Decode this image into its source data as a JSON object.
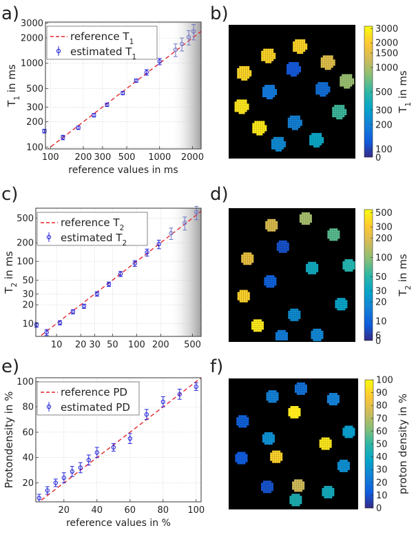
{
  "panels": {
    "a": "a)",
    "b": "b)",
    "c": "c)",
    "d": "d)",
    "e": "e)",
    "f": "f)"
  },
  "chart_data": [
    {
      "id": "t1",
      "type": "scatter",
      "scale": "log",
      "title": "",
      "xlabel": "reference values in ms",
      "ylabel_main": "T",
      "ylabel_sub": "1",
      "ylabel_tail": " in ms",
      "xlim": [
        90,
        2400
      ],
      "ylim": [
        95,
        3100
      ],
      "shade_from": 1250,
      "xticks": [
        100,
        200,
        300,
        500,
        1000,
        2000
      ],
      "xtick_labels": [
        "100",
        "200",
        "300",
        "500",
        "1000",
        "2000"
      ],
      "yticks": [
        100,
        200,
        300,
        500,
        1000,
        2000,
        3000
      ],
      "ytick_labels": [
        "100",
        "200",
        "300",
        "500",
        "1000",
        "2000",
        "3000"
      ],
      "legend": {
        "reference_prefix": "reference T",
        "reference_sub": "1",
        "estimated_prefix": "estimated T",
        "estimated_sub": "1"
      },
      "reference_line": [
        [
          90,
          90
        ],
        [
          2400,
          2400
        ]
      ],
      "points": [
        {
          "x": 88,
          "y": 155,
          "err": 8
        },
        {
          "x": 130,
          "y": 130,
          "err": 8
        },
        {
          "x": 180,
          "y": 170,
          "err": 8
        },
        {
          "x": 250,
          "y": 240,
          "err": 12
        },
        {
          "x": 330,
          "y": 320,
          "err": 15
        },
        {
          "x": 460,
          "y": 440,
          "err": 20
        },
        {
          "x": 610,
          "y": 620,
          "err": 30
        },
        {
          "x": 760,
          "y": 780,
          "err": 60
        },
        {
          "x": 1000,
          "y": 1050,
          "err": 90
        },
        {
          "x": 1400,
          "y": 1450,
          "err": 250
        },
        {
          "x": 1600,
          "y": 1700,
          "err": 300
        },
        {
          "x": 1850,
          "y": 2050,
          "err": 400
        },
        {
          "x": 2050,
          "y": 2400,
          "err": 500
        }
      ]
    },
    {
      "id": "t2",
      "type": "scatter",
      "scale": "log",
      "title": "",
      "xlabel": "",
      "ylabel_main": "T",
      "ylabel_sub": "2",
      "ylabel_tail": " in ms",
      "xlim": [
        5.5,
        640
      ],
      "ylim": [
        6.2,
        720
      ],
      "shade_from": 250,
      "xticks": [
        10,
        20,
        30,
        50,
        100,
        200,
        500
      ],
      "xtick_labels": [
        "10",
        "20",
        "30",
        "50",
        "100",
        "200",
        "500"
      ],
      "yticks": [
        10,
        20,
        30,
        50,
        100,
        200,
        500
      ],
      "ytick_labels": [
        "10",
        "20",
        "30",
        "50",
        "100",
        "200",
        "500"
      ],
      "legend": {
        "reference_prefix": "reference T",
        "reference_sub": "2",
        "estimated_prefix": "estimated T",
        "estimated_sub": "2"
      },
      "reference_line": [
        [
          5.5,
          5.5
        ],
        [
          640,
          640
        ]
      ],
      "points": [
        {
          "x": 5.6,
          "y": 9.5,
          "err": 0.8
        },
        {
          "x": 7.5,
          "y": 7.2,
          "err": 0.8
        },
        {
          "x": 11,
          "y": 10.3,
          "err": 0.8
        },
        {
          "x": 16,
          "y": 15.5,
          "err": 1.2
        },
        {
          "x": 22,
          "y": 19,
          "err": 1.5
        },
        {
          "x": 32,
          "y": 30,
          "err": 2.5
        },
        {
          "x": 45,
          "y": 43,
          "err": 3.5
        },
        {
          "x": 63,
          "y": 63,
          "err": 6
        },
        {
          "x": 95,
          "y": 93,
          "err": 10
        },
        {
          "x": 135,
          "y": 140,
          "err": 18
        },
        {
          "x": 190,
          "y": 190,
          "err": 30
        },
        {
          "x": 270,
          "y": 285,
          "err": 60
        },
        {
          "x": 400,
          "y": 420,
          "err": 100
        },
        {
          "x": 560,
          "y": 620,
          "err": 150
        }
      ]
    },
    {
      "id": "pd",
      "type": "scatter",
      "scale": "linear",
      "title": "",
      "xlabel": "reference values in %",
      "ylabel_main": "Protondensity in %",
      "ylabel_sub": "",
      "ylabel_tail": "",
      "xlim": [
        3,
        103
      ],
      "ylim": [
        5,
        103
      ],
      "shade_from": null,
      "xticks": [
        20,
        40,
        60,
        80,
        100
      ],
      "xtick_labels": [
        "20",
        "40",
        "60",
        "80",
        "100"
      ],
      "yticks": [
        20,
        40,
        60,
        80,
        100
      ],
      "ytick_labels": [
        "20",
        "40",
        "60",
        "80",
        "100"
      ],
      "legend": {
        "reference_prefix": "reference PD",
        "reference_sub": "",
        "estimated_prefix": "estimated PD",
        "estimated_sub": ""
      },
      "reference_line": [
        [
          3,
          3
        ],
        [
          103,
          103
        ]
      ],
      "points": [
        {
          "x": 5,
          "y": 8,
          "err": 3
        },
        {
          "x": 10,
          "y": 14,
          "err": 3
        },
        {
          "x": 15,
          "y": 20,
          "err": 3
        },
        {
          "x": 20,
          "y": 24,
          "err": 4
        },
        {
          "x": 25,
          "y": 29,
          "err": 4
        },
        {
          "x": 30,
          "y": 32,
          "err": 4
        },
        {
          "x": 35,
          "y": 38,
          "err": 4
        },
        {
          "x": 40,
          "y": 44,
          "err": 4
        },
        {
          "x": 50,
          "y": 48,
          "err": 3
        },
        {
          "x": 60,
          "y": 55,
          "err": 4
        },
        {
          "x": 70,
          "y": 74,
          "err": 4
        },
        {
          "x": 80,
          "y": 84,
          "err": 4
        },
        {
          "x": 90,
          "y": 90,
          "err": 4
        },
        {
          "x": 100,
          "y": 96,
          "err": 3
        }
      ]
    },
    {
      "id": "map-t1",
      "type": "heatmap",
      "colorbar_label_main": "T",
      "colorbar_label_sub": "1",
      "colorbar_label_tail": " in ms",
      "colorbar_scale": "log",
      "colorbar_range": [
        80,
        3200
      ],
      "colorbar_ticks": [
        3000,
        2000,
        1500,
        1000,
        500,
        300,
        200,
        100
      ],
      "colorbar_tick_labels": [
        "3000",
        "2000",
        "1500",
        "1000",
        "500",
        "300",
        "200",
        "100"
      ],
      "colorbar_zero_label": "0",
      "spots": [
        {
          "col": 0.55,
          "row": 0.15,
          "value": 2300
        },
        {
          "col": 0.3,
          "row": 0.22,
          "value": 2300
        },
        {
          "col": 0.77,
          "row": 0.27,
          "value": 1500
        },
        {
          "col": 0.11,
          "row": 0.35,
          "value": 2300
        },
        {
          "col": 0.5,
          "row": 0.32,
          "value": 120
        },
        {
          "col": 0.92,
          "row": 0.41,
          "value": 900
        },
        {
          "col": 0.31,
          "row": 0.49,
          "value": 180
        },
        {
          "col": 0.73,
          "row": 0.47,
          "value": 160
        },
        {
          "col": 0.09,
          "row": 0.6,
          "value": 2600
        },
        {
          "col": 0.86,
          "row": 0.64,
          "value": 550
        },
        {
          "col": 0.51,
          "row": 0.72,
          "value": 200
        },
        {
          "col": 0.23,
          "row": 0.76,
          "value": 2700
        },
        {
          "col": 0.38,
          "row": 0.88,
          "value": 230
        },
        {
          "col": 0.68,
          "row": 0.85,
          "value": 340
        }
      ]
    },
    {
      "id": "map-t2",
      "type": "heatmap",
      "colorbar_label_main": "T",
      "colorbar_label_sub": "2",
      "colorbar_label_tail": " in ms",
      "colorbar_scale": "log",
      "colorbar_range": [
        5,
        560
      ],
      "colorbar_ticks": [
        500,
        300,
        200,
        100,
        50,
        30,
        20,
        10,
        6
      ],
      "colorbar_tick_labels": [
        "500",
        "300",
        "200",
        "100",
        "50",
        "30",
        "20",
        "10",
        "6"
      ],
      "colorbar_zero_label": "0",
      "spots": [
        {
          "col": 0.33,
          "row": 0.12,
          "value": 200
        },
        {
          "col": 0.6,
          "row": 0.07,
          "value": 120
        },
        {
          "col": 0.82,
          "row": 0.19,
          "value": 70
        },
        {
          "col": 0.42,
          "row": 0.28,
          "value": 8
        },
        {
          "col": 0.14,
          "row": 0.37,
          "value": 250
        },
        {
          "col": 0.94,
          "row": 0.42,
          "value": 45
        },
        {
          "col": 0.65,
          "row": 0.44,
          "value": 35
        },
        {
          "col": 0.32,
          "row": 0.54,
          "value": 10
        },
        {
          "col": 0.11,
          "row": 0.65,
          "value": 350
        },
        {
          "col": 0.88,
          "row": 0.71,
          "value": 30
        },
        {
          "col": 0.51,
          "row": 0.79,
          "value": 20
        },
        {
          "col": 0.22,
          "row": 0.87,
          "value": 450
        },
        {
          "col": 0.41,
          "row": 0.95,
          "value": 15
        },
        {
          "col": 0.69,
          "row": 0.94,
          "value": 18
        }
      ]
    },
    {
      "id": "map-pd",
      "type": "heatmap",
      "colorbar_label_main": "proton density in %",
      "colorbar_label_sub": "",
      "colorbar_label_tail": "",
      "colorbar_scale": "linear",
      "colorbar_range": [
        0,
        100
      ],
      "colorbar_ticks": [
        100,
        90,
        80,
        70,
        60,
        50,
        40,
        30,
        20,
        10,
        0
      ],
      "colorbar_tick_labels": [
        "100",
        "90",
        "80",
        "70",
        "60",
        "50",
        "40",
        "30",
        "20",
        "10",
        "0"
      ],
      "colorbar_zero_label": "",
      "spots": [
        {
          "col": 0.33,
          "row": 0.13,
          "value": 25
        },
        {
          "col": 0.55,
          "row": 0.07,
          "value": 20
        },
        {
          "col": 0.8,
          "row": 0.15,
          "value": 25
        },
        {
          "col": 0.1,
          "row": 0.32,
          "value": 15
        },
        {
          "col": 0.5,
          "row": 0.25,
          "value": 95
        },
        {
          "col": 0.92,
          "row": 0.4,
          "value": 35
        },
        {
          "col": 0.74,
          "row": 0.49,
          "value": 95
        },
        {
          "col": 0.3,
          "row": 0.45,
          "value": 30
        },
        {
          "col": 0.09,
          "row": 0.6,
          "value": 12
        },
        {
          "col": 0.36,
          "row": 0.59,
          "value": 90
        },
        {
          "col": 0.88,
          "row": 0.66,
          "value": 30
        },
        {
          "col": 0.53,
          "row": 0.81,
          "value": 75
        },
        {
          "col": 0.29,
          "row": 0.82,
          "value": 10
        },
        {
          "col": 0.51,
          "row": 0.92,
          "value": 45
        },
        {
          "col": 0.76,
          "row": 0.86,
          "value": 42
        }
      ]
    }
  ]
}
